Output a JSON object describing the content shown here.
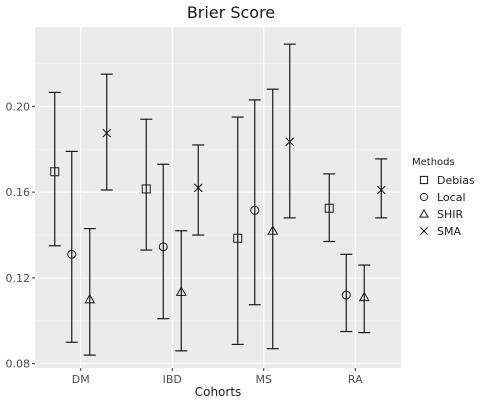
{
  "chart_data": {
    "type": "scatter",
    "title": "Brier Score",
    "xlabel": "Cohorts",
    "ylabel": "",
    "categories": [
      "DM",
      "IBD",
      "MS",
      "RA"
    ],
    "y_ticks": [
      "0.08",
      "0.12",
      "0.16",
      "0.20"
    ],
    "ylim": [
      0.078,
      0.237
    ],
    "grid": true,
    "legend_position": "right",
    "legend_title": "Methods",
    "series": [
      {
        "name": "Debias",
        "marker": "square",
        "values": [
          0.1695,
          0.1615,
          0.1385,
          0.1525
        ],
        "lower": [
          0.135,
          0.133,
          0.089,
          0.137
        ],
        "upper": [
          0.2065,
          0.194,
          0.195,
          0.1685
        ]
      },
      {
        "name": "Local",
        "marker": "circle",
        "values": [
          0.131,
          0.1345,
          0.1515,
          0.112
        ],
        "lower": [
          0.09,
          0.101,
          0.1075,
          0.095
        ],
        "upper": [
          0.179,
          0.173,
          0.203,
          0.131
        ]
      },
      {
        "name": "SHIR",
        "marker": "triangle",
        "values": [
          0.11,
          0.1135,
          0.142,
          0.111
        ],
        "lower": [
          0.084,
          0.086,
          0.087,
          0.0945
        ],
        "upper": [
          0.143,
          0.142,
          0.208,
          0.126
        ]
      },
      {
        "name": "SMA",
        "marker": "x",
        "values": [
          0.1875,
          0.162,
          0.1835,
          0.161
        ],
        "lower": [
          0.161,
          0.14,
          0.148,
          0.148
        ],
        "upper": [
          0.215,
          0.182,
          0.229,
          0.1755
        ]
      }
    ]
  }
}
